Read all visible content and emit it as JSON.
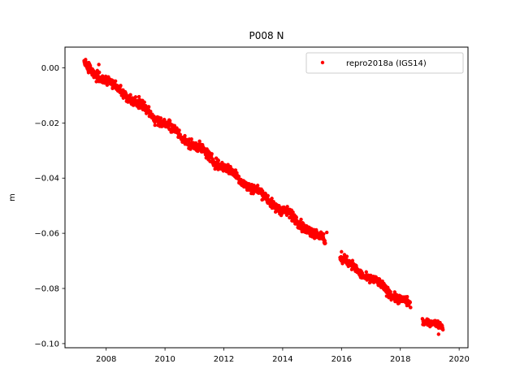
{
  "chart_data": {
    "type": "scatter",
    "title": "P008 N",
    "xlabel": "",
    "ylabel": "m",
    "xlim": [
      2006.6,
      2020.3
    ],
    "ylim": [
      -0.1015,
      0.0075
    ],
    "xticks": [
      2008,
      2010,
      2012,
      2014,
      2016,
      2018,
      2020
    ],
    "yticks": [
      0.0,
      -0.02,
      -0.04,
      -0.06,
      -0.08,
      -0.1
    ],
    "ytick_labels": [
      "0.00",
      "−0.02",
      "−0.04",
      "−0.06",
      "−0.08",
      "−0.10"
    ],
    "grid": false,
    "legend_position": "top-right",
    "series": [
      {
        "name": "repro2018a (IGS14)",
        "color": "#ff0000",
        "marker": "circle",
        "segments": [
          {
            "x_start": 2007.25,
            "x_end": 2015.45,
            "y_start": 0.0012,
            "y_end": -0.063,
            "scatter": 0.0018
          },
          {
            "x_start": 2015.95,
            "x_end": 2018.35,
            "y_start": -0.069,
            "y_end": -0.0865,
            "scatter": 0.0016
          },
          {
            "x_start": 2018.75,
            "x_end": 2019.45,
            "y_start": -0.0912,
            "y_end": -0.0945,
            "scatter": 0.0012
          }
        ],
        "outliers": [
          {
            "x": 2007.3,
            "y": 0.003
          },
          {
            "x": 2007.75,
            "y": 0.0012
          },
          {
            "x": 2015.5,
            "y": -0.0597
          },
          {
            "x": 2016.0,
            "y": -0.0667
          },
          {
            "x": 2019.3,
            "y": -0.0966
          }
        ]
      }
    ]
  }
}
